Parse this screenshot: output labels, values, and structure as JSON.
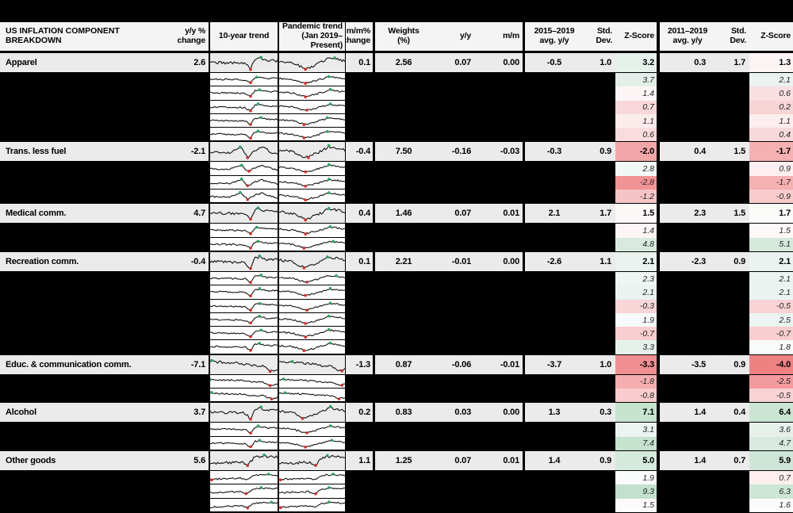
{
  "header": {
    "title": "US INFLATION COMPONENT BREAKDOWN",
    "yy_change": "y/y %\nchange",
    "trend10": "10-year trend",
    "pandemic": "Pandemic trend\n(Jan 2019–Present)",
    "mm_change": "m/m%\nchange",
    "weights": "Weights\n(%)",
    "yy": "y/y",
    "mm": "m/m",
    "avg1": "2015–2019\navg. y/y",
    "std1": "Std. Dev.",
    "z1": "Z-Score",
    "avg2": "2011–2019\navg. y/y",
    "std2": "Std. Dev.",
    "z2": "Z-Score"
  },
  "colors": {
    "table_bg": "#000000",
    "header_bg": "#f4f4f4",
    "main_row_bg": "#ebebeb",
    "spark_bg": "#ffffff",
    "spark_line": "#141414",
    "spark_min_dot": "#cf2b2b",
    "spark_max_dot": "#2f9e62"
  },
  "chart_data": {
    "type": "table",
    "title": "US INFLATION COMPONENT BREAKDOWN",
    "columns": [
      "Component",
      "y/y % change",
      "10-year trend",
      "Pandemic trend (Jan 2019–Present)",
      "m/m% change",
      "Weights (%)",
      "y/y",
      "m/m",
      "2015–2019 avg. y/y",
      "Std. Dev.",
      "Z-Score",
      "2011–2019 avg. y/y",
      "Std. Dev.",
      "Z-Score"
    ],
    "groups": [
      {
        "label": "Apparel",
        "yy_change": "2.6",
        "mm_change": "0.1",
        "weights": "2.56",
        "yy": "0.07",
        "mm": "0.00",
        "avg1": "-0.5",
        "std1": "1.0",
        "z1": "3.2",
        "z1c": "#e6f1eb",
        "avg2": "0.3",
        "std2": "1.7",
        "z2": "1.3",
        "z2c": "#fcf5f5",
        "trend10": "dip",
        "trend_pandemic": "v",
        "subrows": [
          [
            "3.7",
            "#e4efe9",
            "2.1",
            "#eaf3f0"
          ],
          [
            "1.4",
            "#fdf5f5",
            "0.6",
            "#f9dfe1"
          ],
          [
            "0.7",
            "#f8d8da",
            "0.2",
            "#f7d4d6"
          ],
          [
            "1.1",
            "#fcebeb",
            "1.1",
            "#fcedee"
          ],
          [
            "0.6",
            "#f9dcde",
            "0.4",
            "#f8d9db"
          ]
        ]
      },
      {
        "label": "Trans. less fuel",
        "yy_change": "-2.1",
        "mm_change": "-0.4",
        "weights": "7.50",
        "yy": "-0.16",
        "mm": "-0.03",
        "avg1": "-0.3",
        "std1": "0.9",
        "z1": "-2.0",
        "z1c": "#f3a6a8",
        "avg2": "0.4",
        "std2": "1.5",
        "z2": "-1.7",
        "z2c": "#f5b0b2",
        "trend10": "peak",
        "trend_pandemic": "v",
        "subrows": [
          [
            "2.8",
            "#f2f8f5",
            "0.9",
            "#fdeff0"
          ],
          [
            "-2.8",
            "#f19395",
            "-1.7",
            "#f5b0b2"
          ],
          [
            "-1.2",
            "#f7c4c6",
            "-0.9",
            "#f8cbcd"
          ]
        ]
      },
      {
        "label": "Medical comm.",
        "yy_change": "4.7",
        "mm_change": "0.4",
        "weights": "1.46",
        "yy": "0.07",
        "mm": "0.01",
        "avg1": "2.1",
        "std1": "1.7",
        "z1": "1.5",
        "z1c": "#fdf8f8",
        "avg2": "2.3",
        "std2": "1.5",
        "z2": "1.7",
        "z2c": "#fbfbfa",
        "trend10": "dip",
        "trend_pandemic": "v",
        "subrows": [
          [
            "1.4",
            "#fdf5f5",
            "1.5",
            "#fdf9f8"
          ],
          [
            "4.8",
            "#d8eadf",
            "5.1",
            "#d4e8db"
          ]
        ]
      },
      {
        "label": "Recreation comm.",
        "yy_change": "-0.4",
        "mm_change": "0.1",
        "weights": "2.21",
        "yy": "-0.01",
        "mm": "0.00",
        "avg1": "-2.6",
        "std1": "1.1",
        "z1": "2.1",
        "z1c": "#eaf3f0",
        "avg2": "-2.3",
        "std2": "0.9",
        "z2": "2.1",
        "z2c": "#eaf3f0",
        "trend10": "dip",
        "trend_pandemic": "v",
        "subrows": [
          [
            "2.3",
            "#eef5f2",
            "2.1",
            "#eaf3f0"
          ],
          [
            "2.1",
            "#eaf3f0",
            "2.1",
            "#eaf3f0"
          ],
          [
            "-0.3",
            "#f8d5d7",
            "-0.5",
            "#f8d2d4"
          ],
          [
            "1.9",
            "#f7fafa",
            "2.5",
            "#ecf4f1"
          ],
          [
            "-0.7",
            "#f8ced0",
            "-0.7",
            "#f8ced0"
          ],
          [
            "3.3",
            "#e6f1ec",
            "1.8",
            "#f9fbfa"
          ]
        ]
      },
      {
        "label": "Educ. & communication comm.",
        "yy_change": "-7.1",
        "mm_change": "-1.3",
        "weights": "0.87",
        "yy": "-0.06",
        "mm": "-0.01",
        "avg1": "-3.7",
        "std1": "1.0",
        "z1": "-3.3",
        "z1c": "#f08f91",
        "avg2": "-3.5",
        "std2": "0.9",
        "z2": "-4.0",
        "z2c": "#ef8183",
        "trend10": "down",
        "trend_pandemic": "down",
        "subrows": [
          [
            "-1.8",
            "#f5aeb0",
            "-2.5",
            "#f29a9c"
          ],
          [
            "-0.8",
            "#f8ccce",
            "-0.5",
            "#f8d2d4"
          ]
        ]
      },
      {
        "label": "Alcohol",
        "yy_change": "3.7",
        "mm_change": "0.2",
        "weights": "0.83",
        "yy": "0.03",
        "mm": "0.00",
        "avg1": "1.3",
        "std1": "0.3",
        "z1": "7.1",
        "z1c": "#c6e3d0",
        "avg2": "1.4",
        "std2": "0.4",
        "z2": "6.4",
        "z2c": "#cbe5d4",
        "trend10": "dip",
        "trend_pandemic": "v",
        "subrows": [
          [
            "3.1",
            "#ecf4f1",
            "3.6",
            "#e5f0ea"
          ],
          [
            "7.4",
            "#c4e2ce",
            "4.7",
            "#d8eadf"
          ]
        ]
      },
      {
        "label": "Other goods",
        "yy_change": "5.6",
        "mm_change": "1.1",
        "weights": "1.25",
        "yy": "0.07",
        "mm": "0.01",
        "avg1": "1.4",
        "std1": "0.9",
        "z1": "5.0",
        "z1c": "#d5e9dc",
        "avg2": "1.4",
        "std2": "0.7",
        "z2": "5.9",
        "z2c": "#cee6d7",
        "trend10": "up",
        "trend_pandemic": "up",
        "subrows": [
          [
            "1.9",
            "#fafbfb",
            "0.7",
            "#fdeff0"
          ],
          [
            "9.3",
            "#c2e0cd",
            "6.3",
            "#cde6d6"
          ],
          [
            "1.5",
            "#fdfafa",
            "1.6",
            "#fcfbfa"
          ]
        ]
      }
    ]
  }
}
